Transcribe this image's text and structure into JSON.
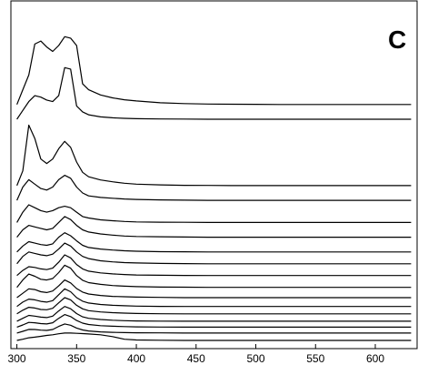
{
  "chart_data": {
    "type": "line",
    "panel_label": "C",
    "ylabel": "",
    "xlabel": "",
    "x_ticks": [
      "300",
      "350",
      "400",
      "450",
      "500",
      "550",
      "600"
    ],
    "xlim": [
      295,
      635
    ],
    "x": [
      300,
      305,
      310,
      315,
      320,
      325,
      330,
      335,
      340,
      345,
      350,
      355,
      360,
      370,
      380,
      390,
      400,
      420,
      440,
      460,
      480,
      500,
      520,
      540,
      560,
      580,
      600,
      620,
      630
    ],
    "series": [
      {
        "offset": 16.0,
        "values": [
          0,
          1.0,
          2.0,
          4.1,
          4.3,
          3.9,
          3.6,
          4.0,
          4.6,
          4.5,
          4.0,
          1.4,
          1.0,
          0.65,
          0.45,
          0.32,
          0.24,
          0.12,
          0.06,
          0.03,
          0.02,
          0.01,
          0,
          0,
          0,
          0,
          0,
          0,
          0
        ]
      },
      {
        "offset": 15.0,
        "values": [
          0,
          0.6,
          1.2,
          1.6,
          1.5,
          1.3,
          1.2,
          1.6,
          3.5,
          3.4,
          0.9,
          0.5,
          0.3,
          0.16,
          0.1,
          0.06,
          0.04,
          0.02,
          0.01,
          0,
          0,
          0,
          0,
          0,
          0,
          0,
          0,
          0,
          0
        ]
      },
      {
        "offset": 10.5,
        "values": [
          0,
          1.0,
          4.1,
          3.2,
          1.8,
          1.5,
          1.8,
          2.5,
          3.0,
          2.6,
          1.6,
          0.9,
          0.6,
          0.38,
          0.26,
          0.16,
          0.1,
          0.05,
          0.02,
          0.01,
          0,
          0,
          0,
          0,
          0,
          0,
          0,
          0,
          0
        ]
      },
      {
        "offset": 9.5,
        "values": [
          0,
          0.9,
          1.4,
          1.1,
          0.8,
          0.7,
          0.9,
          1.4,
          1.7,
          1.5,
          0.9,
          0.5,
          0.3,
          0.2,
          0.14,
          0.09,
          0.06,
          0.03,
          0.01,
          0,
          0,
          0,
          0,
          0,
          0,
          0,
          0,
          0,
          0
        ]
      },
      {
        "offset": 8.0,
        "values": [
          0,
          0.7,
          1.2,
          1.0,
          0.8,
          0.7,
          0.8,
          1.0,
          1.1,
          1.0,
          0.7,
          0.4,
          0.3,
          0.18,
          0.12,
          0.07,
          0.04,
          0.02,
          0.01,
          0,
          0,
          0,
          0,
          0,
          0,
          0,
          0,
          0,
          0
        ]
      },
      {
        "offset": 7.0,
        "values": [
          0,
          0.5,
          0.8,
          0.7,
          0.6,
          0.5,
          0.6,
          1.0,
          1.4,
          1.2,
          0.8,
          0.5,
          0.35,
          0.22,
          0.14,
          0.08,
          0.05,
          0.03,
          0.01,
          0,
          0,
          0,
          0,
          0,
          0,
          0,
          0,
          0,
          0
        ]
      },
      {
        "offset": 6.0,
        "values": [
          0,
          0.4,
          0.7,
          0.6,
          0.5,
          0.45,
          0.55,
          1.0,
          1.3,
          1.1,
          0.75,
          0.45,
          0.3,
          0.2,
          0.13,
          0.08,
          0.05,
          0.02,
          0.01,
          0,
          0,
          0,
          0,
          0,
          0,
          0,
          0,
          0,
          0
        ]
      },
      {
        "offset": 5.2,
        "values": [
          0,
          0.5,
          0.8,
          0.7,
          0.6,
          0.55,
          0.65,
          1.0,
          1.4,
          1.2,
          0.8,
          0.5,
          0.35,
          0.2,
          0.13,
          0.08,
          0.05,
          0.02,
          0.01,
          0,
          0,
          0,
          0,
          0,
          0,
          0,
          0,
          0,
          0
        ]
      },
      {
        "offset": 4.4,
        "values": [
          0,
          0.35,
          0.6,
          0.55,
          0.45,
          0.4,
          0.5,
          0.9,
          1.4,
          1.2,
          0.75,
          0.45,
          0.3,
          0.18,
          0.11,
          0.07,
          0.04,
          0.02,
          0.01,
          0,
          0,
          0,
          0,
          0,
          0,
          0,
          0,
          0,
          0
        ]
      },
      {
        "offset": 3.6,
        "values": [
          0,
          0.5,
          0.9,
          0.75,
          0.55,
          0.5,
          0.6,
          1.0,
          1.5,
          1.3,
          0.8,
          0.48,
          0.32,
          0.2,
          0.12,
          0.08,
          0.05,
          0.02,
          0.01,
          0,
          0,
          0,
          0,
          0,
          0,
          0,
          0,
          0,
          0
        ]
      },
      {
        "offset": 2.9,
        "values": [
          0,
          0.3,
          0.6,
          0.55,
          0.4,
          0.35,
          0.45,
          0.8,
          1.2,
          1.0,
          0.62,
          0.38,
          0.25,
          0.15,
          0.09,
          0.06,
          0.04,
          0.02,
          0,
          0,
          0,
          0,
          0,
          0,
          0,
          0,
          0,
          0,
          0
        ]
      },
      {
        "offset": 2.3,
        "values": [
          0,
          0.3,
          0.5,
          0.45,
          0.35,
          0.3,
          0.4,
          0.8,
          1.2,
          1.0,
          0.6,
          0.36,
          0.24,
          0.14,
          0.08,
          0.05,
          0.03,
          0.01,
          0,
          0,
          0,
          0,
          0,
          0,
          0,
          0,
          0,
          0,
          0
        ]
      },
      {
        "offset": 1.8,
        "values": [
          0,
          0.25,
          0.45,
          0.4,
          0.3,
          0.28,
          0.38,
          0.75,
          1.1,
          0.95,
          0.58,
          0.34,
          0.22,
          0.13,
          0.08,
          0.05,
          0.03,
          0.01,
          0,
          0,
          0,
          0,
          0,
          0,
          0,
          0,
          0,
          0,
          0
        ]
      },
      {
        "offset": 1.3,
        "values": [
          0,
          0.2,
          0.4,
          0.35,
          0.28,
          0.25,
          0.35,
          0.7,
          1.0,
          0.85,
          0.52,
          0.3,
          0.2,
          0.12,
          0.07,
          0.04,
          0.02,
          0.01,
          0,
          0,
          0,
          0,
          0,
          0,
          0,
          0,
          0,
          0,
          0
        ]
      },
      {
        "offset": 0.9,
        "values": [
          0,
          0.15,
          0.32,
          0.3,
          0.24,
          0.22,
          0.3,
          0.6,
          0.85,
          0.72,
          0.45,
          0.27,
          0.18,
          0.1,
          0.06,
          0.04,
          0.02,
          0.01,
          0,
          0,
          0,
          0,
          0,
          0,
          0,
          0,
          0,
          0,
          0
        ]
      },
      {
        "offset": 0.5,
        "values": [
          0,
          0.12,
          0.25,
          0.24,
          0.2,
          0.18,
          0.24,
          0.45,
          0.62,
          0.53,
          0.34,
          0.21,
          0.14,
          0.08,
          0.05,
          0.03,
          0.02,
          0.01,
          0,
          0,
          0,
          0,
          0,
          0,
          0,
          0,
          0,
          0,
          0
        ]
      },
      {
        "offset": 0.0,
        "values": [
          0,
          0.08,
          0.18,
          0.22,
          0.28,
          0.34,
          0.38,
          0.45,
          0.5,
          0.5,
          0.48,
          0.46,
          0.44,
          0.38,
          0.26,
          0.08,
          0.03,
          0.01,
          0,
          0,
          0,
          0,
          0,
          0,
          0,
          0,
          0,
          0,
          0
        ]
      }
    ]
  }
}
